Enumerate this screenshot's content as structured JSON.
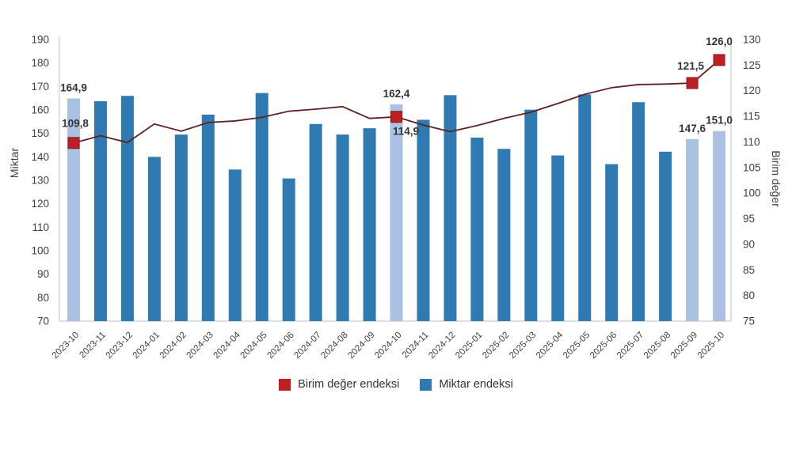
{
  "chart_data": {
    "type": "bar",
    "subtype": "combo-bar-line-dual-axis",
    "categories": [
      "2023-10",
      "2023-11",
      "2023-12",
      "2024-01",
      "2024-02",
      "2024-03",
      "2024-04",
      "2024-05",
      "2024-06",
      "2024-07",
      "2024-08",
      "2024-09",
      "2024-10",
      "2024-11",
      "2024-12",
      "2025-01",
      "2025-02",
      "2025-03",
      "2025-04",
      "2025-05",
      "2025-06",
      "2025-07",
      "2025-08",
      "2025-09",
      "2025-10"
    ],
    "series": [
      {
        "name": "Miktar endeksi",
        "type": "bar",
        "axis": "left",
        "values": [
          164.9,
          163.7,
          166.0,
          140.0,
          149.5,
          158.0,
          134.6,
          167.2,
          130.8,
          154.0,
          149.5,
          152.2,
          162.4,
          155.8,
          166.3,
          148.2,
          143.4,
          160.1,
          140.6,
          166.6,
          136.9,
          163.3,
          142.2,
          147.6,
          151.0
        ]
      },
      {
        "name": "Birim değer endeksi",
        "type": "line",
        "axis": "right",
        "values": [
          109.8,
          111.2,
          109.9,
          113.5,
          112.1,
          113.8,
          114.1,
          114.8,
          116.0,
          116.4,
          116.9,
          114.6,
          114.9,
          113.3,
          112.0,
          113.2,
          114.6,
          115.8,
          117.5,
          119.3,
          120.6,
          121.2,
          121.3,
          121.5,
          126.0
        ]
      }
    ],
    "highlighted_bar_indices": [
      0,
      12,
      23,
      24
    ],
    "marker_indices": [
      0,
      12,
      23,
      24
    ],
    "point_labels": [
      {
        "index": 0,
        "bar_label": "164,9",
        "line_label": "109,8",
        "line_dx": 2,
        "line_dy": -24
      },
      {
        "index": 12,
        "bar_label": "162,4",
        "line_label": "114,9",
        "line_dx": 12,
        "line_dy": 19
      },
      {
        "index": 23,
        "bar_label": "147,6",
        "line_label": "121,5",
        "line_dx": -2,
        "line_dy": -21
      },
      {
        "index": 24,
        "bar_label": "151,0",
        "line_label": "126,0",
        "line_dx": 0,
        "line_dy": -23
      }
    ],
    "left_axis": {
      "title": "Miktar",
      "min": 70,
      "max": 190,
      "step": 10,
      "ticks": [
        190,
        180,
        170,
        160,
        150,
        140,
        130,
        120,
        110,
        100,
        90,
        80,
        70
      ]
    },
    "right_axis": {
      "title": "Birim değer",
      "min": 75,
      "max": 130,
      "step": 5,
      "ticks": [
        130,
        125,
        120,
        115,
        110,
        105,
        100,
        95,
        90,
        85,
        80,
        75
      ]
    },
    "legend": [
      {
        "label": "Birim değer endeksi",
        "color": "#be1e24"
      },
      {
        "label": "Miktar endeksi",
        "color": "#2e7ab1"
      }
    ],
    "colors": {
      "bar": "#2e7ab1",
      "bar_highlight": "#abc1e4",
      "line": "#5d211f",
      "marker_fill": "#be1e24",
      "marker_stroke": "#8c1a1a",
      "tick_text": "#3f3f3f",
      "data_label_text": "#333333",
      "axis_line": "#d6d6d6"
    },
    "grid": "off",
    "legend_position": "bottom-center"
  }
}
